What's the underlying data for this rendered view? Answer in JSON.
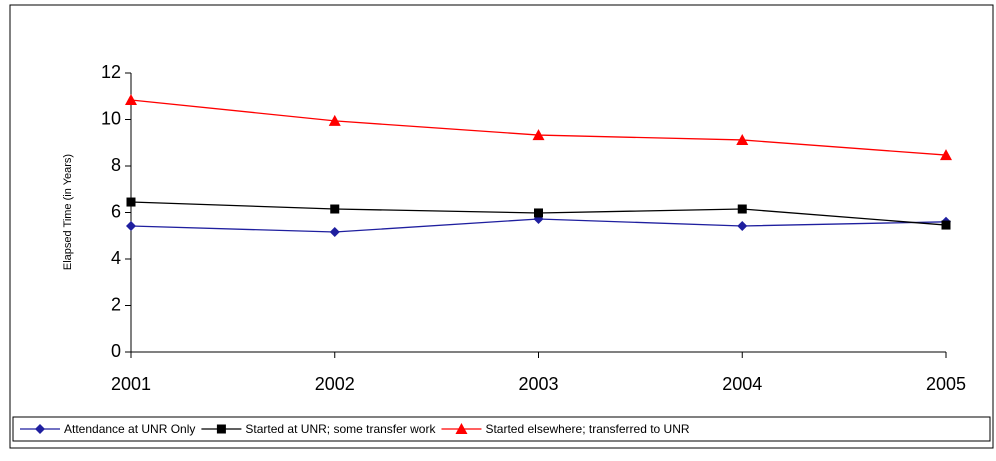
{
  "chart_data": {
    "type": "line",
    "y_label": "Elapsed Time (in Years)",
    "categories": [
      "2001",
      "2002",
      "2003",
      "2004",
      "2005"
    ],
    "series": [
      {
        "name": "Attendance at UNR Only",
        "color": "#1f1f9f",
        "marker": "diamond",
        "values": [
          5.42,
          5.16,
          5.72,
          5.42,
          5.6
        ]
      },
      {
        "name": "Started at UNR; some transfer work",
        "color": "#000000",
        "marker": "square",
        "values": [
          6.45,
          6.15,
          5.98,
          6.15,
          5.46
        ]
      },
      {
        "name": "Started elsewhere; transferred to UNR",
        "color": "#ff0000",
        "marker": "triangle",
        "values": [
          10.84,
          9.94,
          9.33,
          9.12,
          8.47
        ]
      }
    ],
    "ylim": [
      0,
      12
    ],
    "yticks": [
      0,
      2,
      4,
      6,
      8,
      10,
      12
    ],
    "legend": "bottom"
  }
}
